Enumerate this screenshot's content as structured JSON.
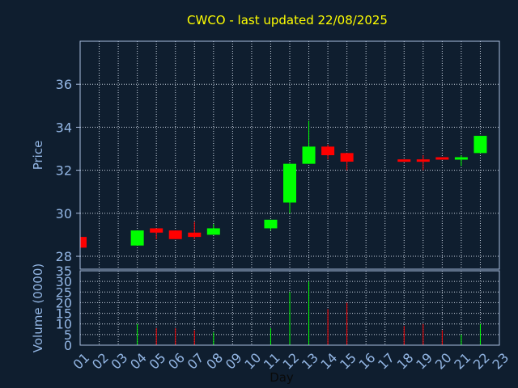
{
  "chart_data": {
    "type": "candlestick",
    "title": "CWCO - last updated 22/08/2025",
    "xlabel": "Day",
    "ylabel_price": "Price",
    "ylabel_volume": "Volume (0000)",
    "x_ticks": [
      "01",
      "02",
      "03",
      "04",
      "05",
      "06",
      "07",
      "08",
      "09",
      "10",
      "11",
      "12",
      "13",
      "14",
      "15",
      "16",
      "17",
      "18",
      "19",
      "20",
      "21",
      "22",
      "23"
    ],
    "price_ticks": [
      28,
      30,
      32,
      34,
      36
    ],
    "price_range": [
      27.4,
      38.0
    ],
    "volume_ticks": [
      0,
      5,
      10,
      15,
      20,
      25,
      30,
      35
    ],
    "volume_range": [
      0,
      35
    ],
    "grid": true,
    "colors": {
      "up": "#00ff00",
      "down": "#ff0000",
      "background": "#0f1e2f",
      "plot_border": "#a9bddf",
      "grid": "#c9d3e0",
      "title": "#ffff00",
      "axis_text": "#93b6e4"
    },
    "candles": [
      {
        "day": "01",
        "open": 28.9,
        "high": 28.9,
        "low": 28.4,
        "close": 28.4
      },
      {
        "day": "04",
        "open": 28.5,
        "high": 29.2,
        "low": 28.5,
        "close": 29.2
      },
      {
        "day": "05",
        "open": 29.3,
        "high": 29.3,
        "low": 28.8,
        "close": 29.1
      },
      {
        "day": "06",
        "open": 29.2,
        "high": 29.2,
        "low": 28.8,
        "close": 28.8
      },
      {
        "day": "07",
        "open": 29.1,
        "high": 29.6,
        "low": 28.8,
        "close": 28.9
      },
      {
        "day": "08",
        "open": 29.0,
        "high": 29.5,
        "low": 29.0,
        "close": 29.3
      },
      {
        "day": "11",
        "open": 29.3,
        "high": 29.7,
        "low": 29.2,
        "close": 29.7
      },
      {
        "day": "12",
        "open": 30.5,
        "high": 32.3,
        "low": 30.0,
        "close": 32.3
      },
      {
        "day": "13",
        "open": 32.3,
        "high": 34.3,
        "low": 32.3,
        "close": 33.1
      },
      {
        "day": "14",
        "open": 33.1,
        "high": 33.2,
        "low": 32.5,
        "close": 32.7
      },
      {
        "day": "15",
        "open": 32.8,
        "high": 32.8,
        "low": 32.0,
        "close": 32.4
      },
      {
        "day": "18",
        "open": 32.5,
        "high": 32.5,
        "low": 32.4,
        "close": 32.4
      },
      {
        "day": "19",
        "open": 32.5,
        "high": 32.7,
        "low": 32.0,
        "close": 32.4
      },
      {
        "day": "20",
        "open": 32.6,
        "high": 32.6,
        "low": 32.5,
        "close": 32.5
      },
      {
        "day": "21",
        "open": 32.5,
        "high": 32.7,
        "low": 32.2,
        "close": 32.6
      },
      {
        "day": "22",
        "open": 32.8,
        "high": 33.6,
        "low": 32.8,
        "close": 33.6
      }
    ],
    "volume": [
      {
        "day": "04",
        "value": 10,
        "direction": "up"
      },
      {
        "day": "05",
        "value": 8,
        "direction": "down"
      },
      {
        "day": "06",
        "value": 8,
        "direction": "down"
      },
      {
        "day": "07",
        "value": 7,
        "direction": "down"
      },
      {
        "day": "08",
        "value": 6,
        "direction": "up"
      },
      {
        "day": "11",
        "value": 8,
        "direction": "up"
      },
      {
        "day": "12",
        "value": 25,
        "direction": "up"
      },
      {
        "day": "13",
        "value": 30,
        "direction": "up"
      },
      {
        "day": "14",
        "value": 17,
        "direction": "down"
      },
      {
        "day": "15",
        "value": 20,
        "direction": "down"
      },
      {
        "day": "18",
        "value": 9,
        "direction": "down"
      },
      {
        "day": "19",
        "value": 10,
        "direction": "down"
      },
      {
        "day": "20",
        "value": 7,
        "direction": "down"
      },
      {
        "day": "21",
        "value": 5,
        "direction": "up"
      },
      {
        "day": "22",
        "value": 10,
        "direction": "up"
      }
    ]
  }
}
